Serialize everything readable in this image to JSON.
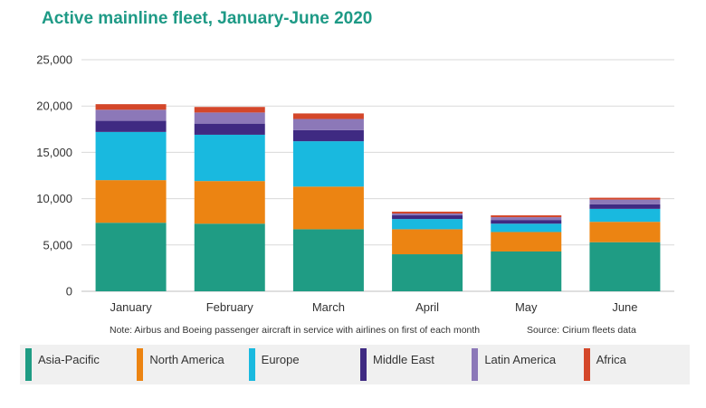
{
  "title": "Active mainline fleet, January-June 2020",
  "note": "Note: Airbus and Boeing passenger aircraft in service with airlines on first of each month",
  "source": "Source: Cirium fleets data",
  "colors": {
    "asia_pacific": "#1f9c84",
    "north_america": "#ec8412",
    "europe": "#19b9df",
    "middle_east": "#3f2a82",
    "latin_america": "#8c78b8",
    "africa": "#d4472a"
  },
  "chart_data": {
    "type": "bar",
    "stacked": true,
    "categories": [
      "January",
      "February",
      "March",
      "April",
      "May",
      "June"
    ],
    "series": [
      {
        "name": "Asia-Pacific",
        "color": "#1f9c84",
        "values": [
          7400,
          7300,
          6700,
          4000,
          4300,
          5300
        ]
      },
      {
        "name": "North America",
        "color": "#ec8412",
        "values": [
          4600,
          4600,
          4600,
          2700,
          2100,
          2200
        ]
      },
      {
        "name": "Europe",
        "color": "#19b9df",
        "values": [
          5200,
          5000,
          4900,
          1100,
          900,
          1400
        ]
      },
      {
        "name": "Middle East",
        "color": "#3f2a82",
        "values": [
          1200,
          1200,
          1200,
          400,
          400,
          500
        ]
      },
      {
        "name": "Latin America",
        "color": "#8c78b8",
        "values": [
          1200,
          1200,
          1200,
          200,
          300,
          500
        ]
      },
      {
        "name": "Africa",
        "color": "#d4472a",
        "values": [
          600,
          600,
          600,
          200,
          200,
          200
        ]
      }
    ],
    "y_ticks": [
      "0",
      "5,000",
      "10,000",
      "15,000",
      "20,000",
      "25,000"
    ],
    "ylim": [
      0,
      25000
    ],
    "grid": true,
    "legend_position": "bottom"
  }
}
